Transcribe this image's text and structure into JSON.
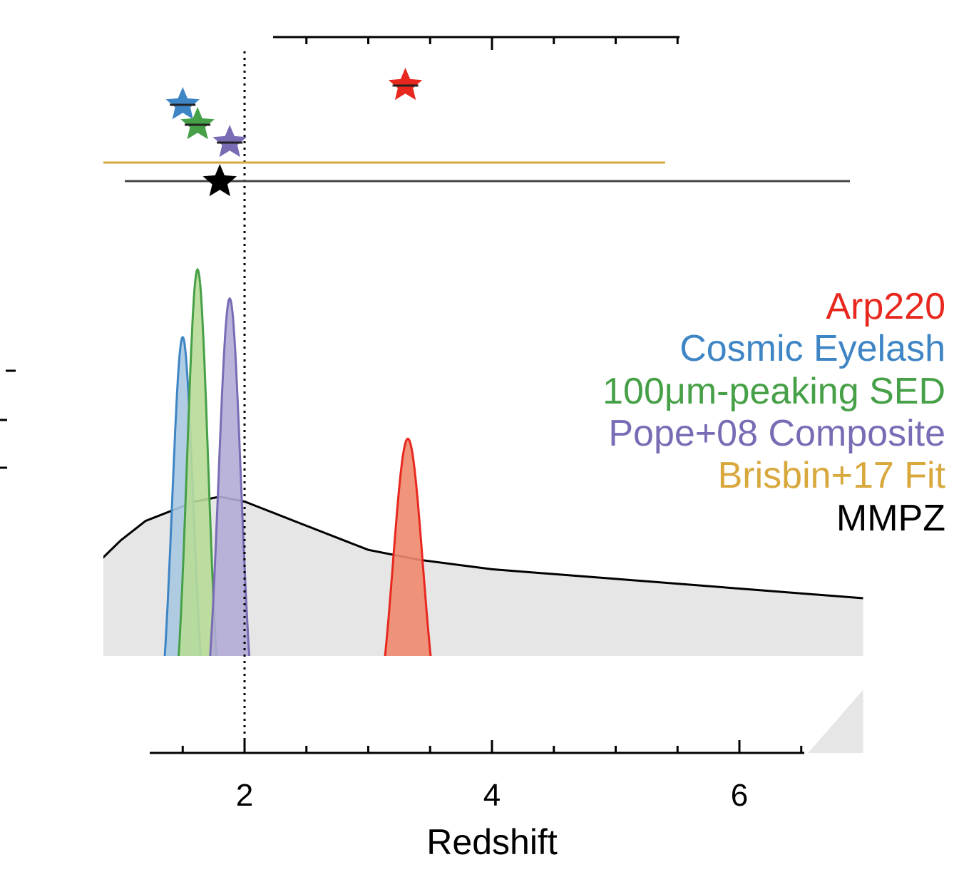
{
  "chart_data": {
    "type": "area",
    "xlabel": "Redshift",
    "xlim": [
      0,
      6.5
    ],
    "x_ticks": [
      "2",
      "4",
      "6"
    ],
    "x_tick_values": [
      2,
      4,
      6
    ],
    "minor_tick_step": 0.5,
    "reference_line_x": 2.0,
    "series": [
      {
        "name": "Arp220",
        "color": "#e8281f",
        "fill": "#ee8a6e",
        "peak_z": 3.32,
        "sigma": 0.12,
        "peak": 0.65,
        "star_z": 3.3
      },
      {
        "name": "Cosmic Eyelash",
        "color": "#3e85c5",
        "fill": "#a8c8e0",
        "peak_z": 1.5,
        "sigma": 0.085,
        "peak": 0.86,
        "star_z": 1.5
      },
      {
        "name": "100μm-peaking SED",
        "color": "#46a047",
        "fill": "#b8dc98",
        "peak_z": 1.62,
        "sigma": 0.085,
        "peak": 1.0,
        "star_z": 1.62
      },
      {
        "name": "Pope+08 Composite",
        "color": "#7a6bb5",
        "fill": "#b2acd6",
        "peak_z": 1.88,
        "sigma": 0.09,
        "peak": 0.94,
        "star_z": 1.88
      },
      {
        "name": "Brisbin+17 Fit",
        "color": "#d8a83c",
        "star_z": null,
        "range": [
          0.0,
          5.4
        ]
      },
      {
        "name": "MMPZ",
        "color": "#000000",
        "fill": "#e6e6e6",
        "star_z": 1.8,
        "range": [
          0.2,
          7.0
        ],
        "x": [
          0.0,
          0.4,
          0.8,
          1.0,
          1.2,
          1.4,
          1.6,
          1.8,
          2.0,
          2.2,
          2.4,
          2.6,
          2.8,
          3.0,
          3.4,
          4.0,
          5.0,
          6.0,
          7.0
        ],
        "y": [
          0.08,
          0.25,
          0.39,
          0.44,
          0.48,
          0.5,
          0.52,
          0.53,
          0.52,
          0.5,
          0.48,
          0.46,
          0.44,
          0.42,
          0.4,
          0.38,
          0.36,
          0.34,
          0.32
        ]
      }
    ]
  }
}
